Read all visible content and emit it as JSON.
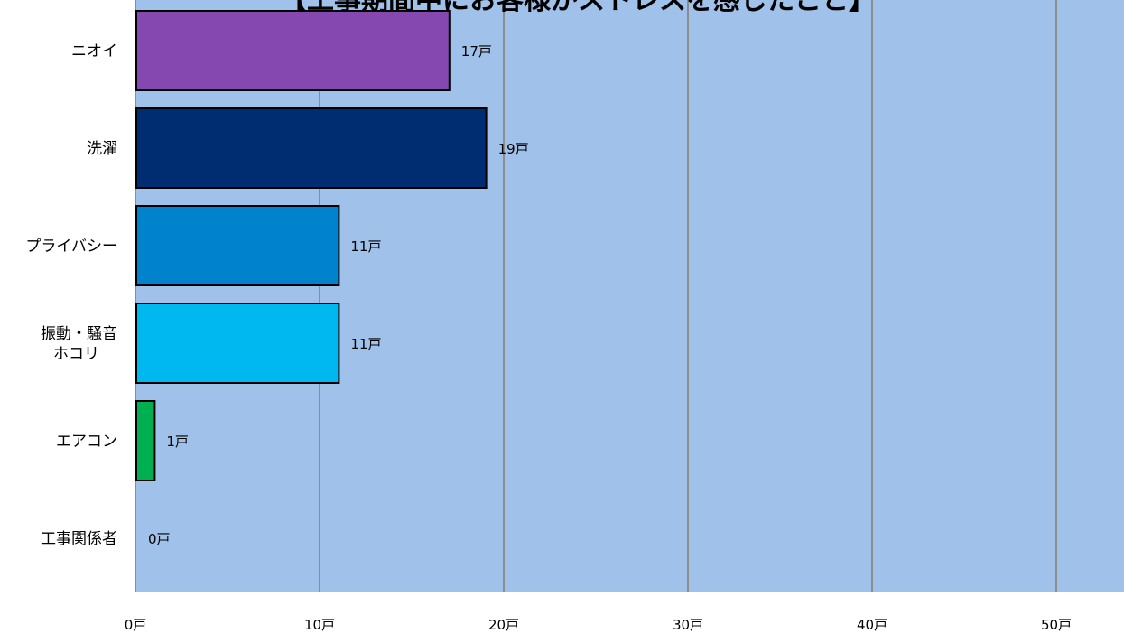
{
  "chart_data": {
    "type": "bar",
    "orientation": "horizontal",
    "title": "【工事期間中にお客様がストレスを感じたこと】",
    "categories": [
      "ニオイ",
      "洗濯",
      "プライバシー",
      "振動・騒音\nホコリ",
      "エアコン",
      "工事関係者"
    ],
    "values": [
      17,
      19,
      11,
      11,
      1,
      0
    ],
    "data_labels": [
      "17戸",
      "19戸",
      "11戸",
      "11戸",
      "1戸",
      "0戸"
    ],
    "x_tick_labels": [
      "0戸",
      "10戸",
      "20戸",
      "30戸",
      "40戸",
      "50戸"
    ],
    "x_ticks": [
      0,
      10,
      20,
      30,
      40,
      50
    ],
    "xlim": [
      0,
      54
    ],
    "grid": true,
    "legend": "none",
    "colors": {
      "plot_background": "#a0c2ea",
      "gridline": "#8c8c8c",
      "bar_outline": "#000000",
      "bars": [
        "#8548b0",
        "#002d72",
        "#0082cc",
        "#00b8f0",
        "#00b050",
        "#ffffff"
      ]
    }
  }
}
